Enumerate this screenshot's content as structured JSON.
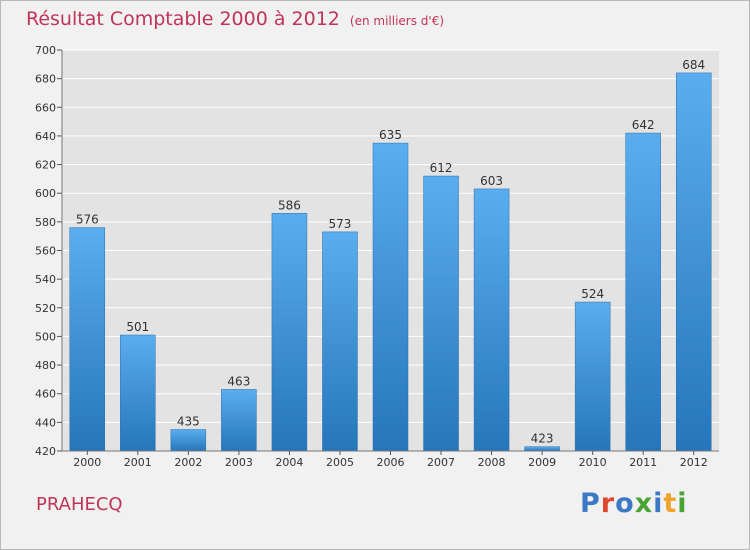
{
  "title": "Résultat Comptable 2000 à 2012",
  "subtitle": "(en milliers d'€)",
  "location": "PRAHECQ",
  "brand": {
    "text": "Proxiti",
    "letter_colors": [
      "#3b79c6",
      "#e0462f",
      "#3b79c6",
      "#4aa434",
      "#3b79c6",
      "#f0a22a",
      "#4aa434"
    ]
  },
  "colors": {
    "bar_top": "#5aadee",
    "bar_bottom": "#2576bb",
    "title": "#c0345a",
    "grid": "#ffffff",
    "plot_bg": "#e3e3e3"
  },
  "chart_data": {
    "type": "bar",
    "categories": [
      "2000",
      "2001",
      "2002",
      "2003",
      "2004",
      "2005",
      "2006",
      "2007",
      "2008",
      "2009",
      "2010",
      "2011",
      "2012"
    ],
    "values": [
      576,
      501,
      435,
      463,
      586,
      573,
      635,
      612,
      603,
      423,
      524,
      642,
      684
    ],
    "title": "Résultat Comptable 2000 à 2012",
    "subtitle": "(en milliers d'€)",
    "xlabel": "",
    "ylabel": "",
    "ylim": [
      420,
      700
    ],
    "yticks": [
      420,
      440,
      460,
      480,
      500,
      520,
      540,
      560,
      580,
      600,
      620,
      640,
      660,
      680,
      700
    ],
    "grid": true,
    "data_labels": true
  }
}
